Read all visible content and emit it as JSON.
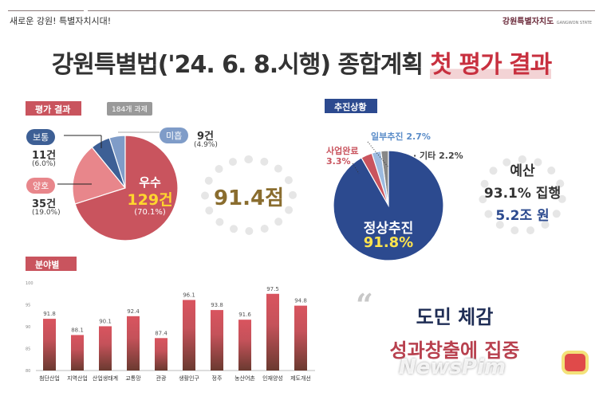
{
  "header": {
    "slogan": "새로운 강원! 특별자치시대!",
    "brand": "강원특별자치도",
    "brand_en": "GANGWON STATE"
  },
  "title": {
    "main": "강원특별법('24. 6. 8.시행) 종합계획",
    "highlight": "첫 평가 결과"
  },
  "evaluation": {
    "section": "평가 결과",
    "tag": "184개 과제",
    "score": "91.4점",
    "slices": [
      {
        "label": "우수",
        "count": "129건",
        "percent": "(70.1%)",
        "value": 70.1,
        "color": "#c9545e"
      },
      {
        "label": "양호",
        "count": "35건",
        "percent": "(19.0%)",
        "value": 19.0,
        "color": "#e8868b"
      },
      {
        "label": "보통",
        "count": "11건",
        "percent": "(6.0%)",
        "value": 6.0,
        "color": "#3d5f95"
      },
      {
        "label": "미흡",
        "count": "9건",
        "percent": "(4.9%)",
        "value": 4.9,
        "color": "#7f9cc8"
      }
    ]
  },
  "progress": {
    "section": "추진상황",
    "slices": [
      {
        "label": "정상추진",
        "percent": "91.8%",
        "value": 91.8,
        "color": "#2c4a8f"
      },
      {
        "label": "사업완료",
        "percent": "3.3%",
        "value": 3.3,
        "color": "#c9545e"
      },
      {
        "label": "일부추진",
        "percent": "2.7%",
        "value": 2.7,
        "color": "#9dbbe0"
      },
      {
        "label": "기타",
        "percent": "2.2%",
        "value": 2.2,
        "color": "#888888"
      }
    ]
  },
  "budget": {
    "title": "예산",
    "rate": "93.1% 집행",
    "amount": "5.2조 원"
  },
  "field": {
    "section": "분야별"
  },
  "chart_data": {
    "type": "bar",
    "ylim": [
      80,
      100
    ],
    "yticks": [
      "100",
      "95",
      "90",
      "85",
      "80"
    ],
    "categories": [
      "첨단산업",
      "지역산업",
      "산업생태계",
      "교통망",
      "관광",
      "생활인구",
      "정주",
      "농산어촌",
      "인재양성",
      "제도개선"
    ],
    "values": [
      91.8,
      88.1,
      90.1,
      92.4,
      87.4,
      96.1,
      93.8,
      91.6,
      97.5,
      94.8
    ],
    "labels": [
      "91.8",
      "88.1",
      "90.1",
      "92.4",
      "87.4",
      "96.1",
      "93.8",
      "91.6",
      "97.5",
      "94.8"
    ]
  },
  "quote": {
    "line1": "도민 체감",
    "line2": "성과창출에 집중"
  },
  "watermark": "NewsPim"
}
